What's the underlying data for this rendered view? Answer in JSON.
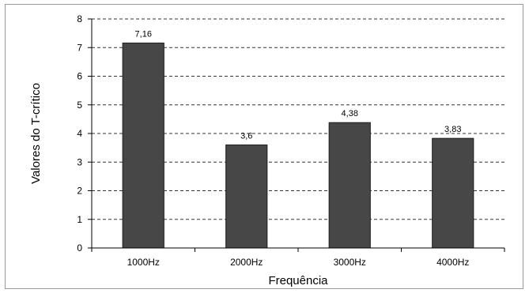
{
  "chart_data": {
    "type": "bar",
    "categories": [
      "1000Hz",
      "2000Hz",
      "3000Hz",
      "4000Hz"
    ],
    "values": [
      7.16,
      3.6,
      4.38,
      3.83
    ],
    "data_labels": [
      "7,16",
      "3,6",
      "4,38",
      "3,83"
    ],
    "xlabel": "Frequência",
    "ylabel": "Valores do T-crítico",
    "ylim": [
      0,
      8
    ],
    "yticks": [
      0,
      1,
      2,
      3,
      4,
      5,
      6,
      7,
      8
    ],
    "grid": "horizontal dashed",
    "colors": {
      "bar": "#474747",
      "bar_edge": "#1e1e1e",
      "grid": "#333333"
    }
  }
}
